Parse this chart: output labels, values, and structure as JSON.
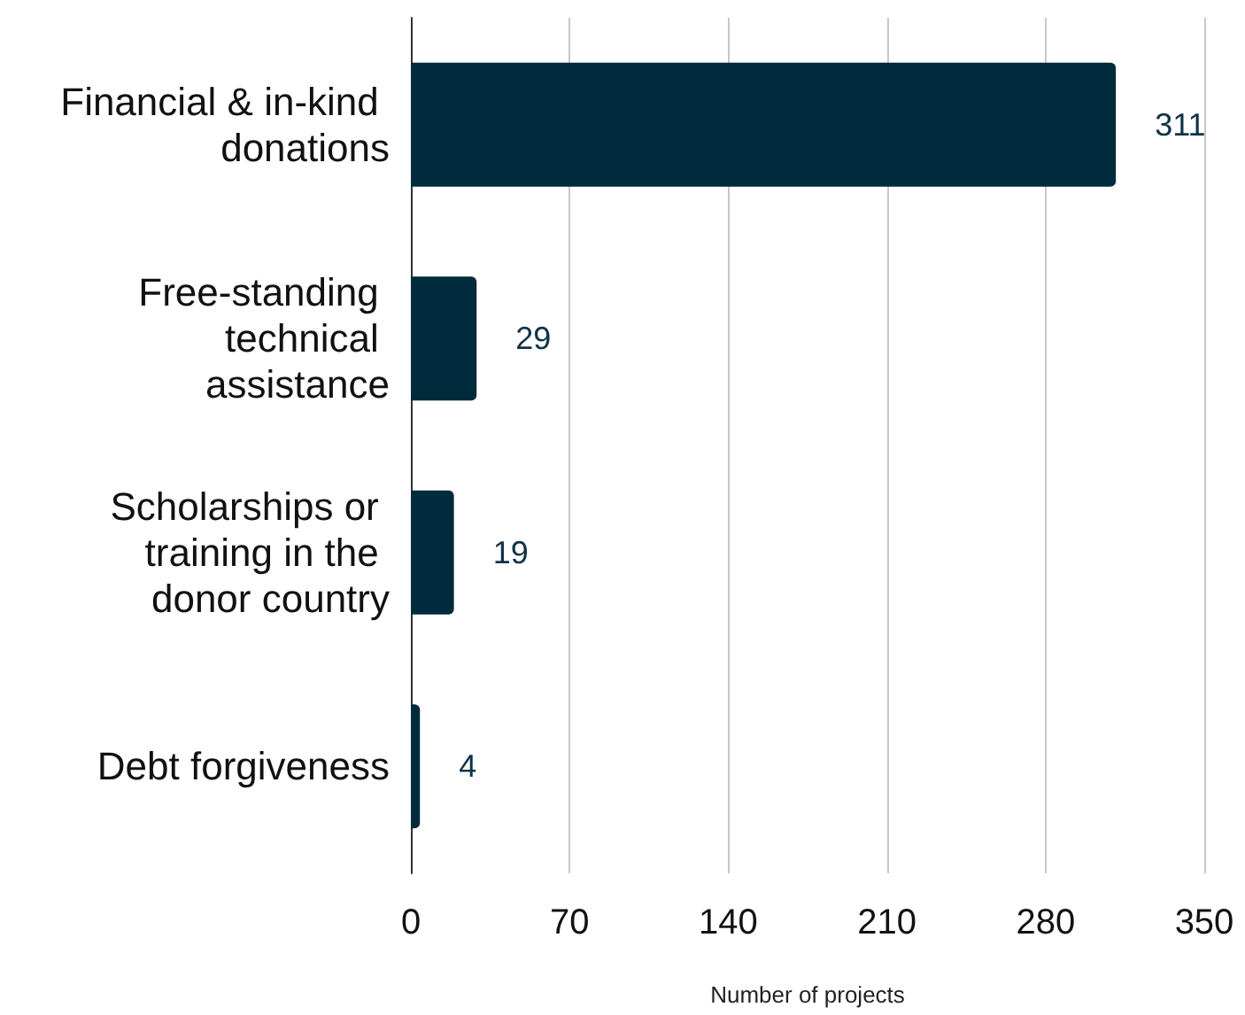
{
  "chart_data": {
    "type": "bar",
    "orientation": "horizontal",
    "xlabel": "Number of projects",
    "categories": [
      "Financial & in-kind donations",
      "Free-standing technical assistance",
      "Scholarships or training in the donor country",
      "Debt forgiveness"
    ],
    "values": [
      311,
      29,
      19,
      4
    ],
    "color": "#002b3d",
    "xlim": [
      0,
      350
    ],
    "xticks": [
      0,
      70,
      140,
      210,
      280,
      350
    ],
    "grid": "x",
    "data_labels": true
  }
}
